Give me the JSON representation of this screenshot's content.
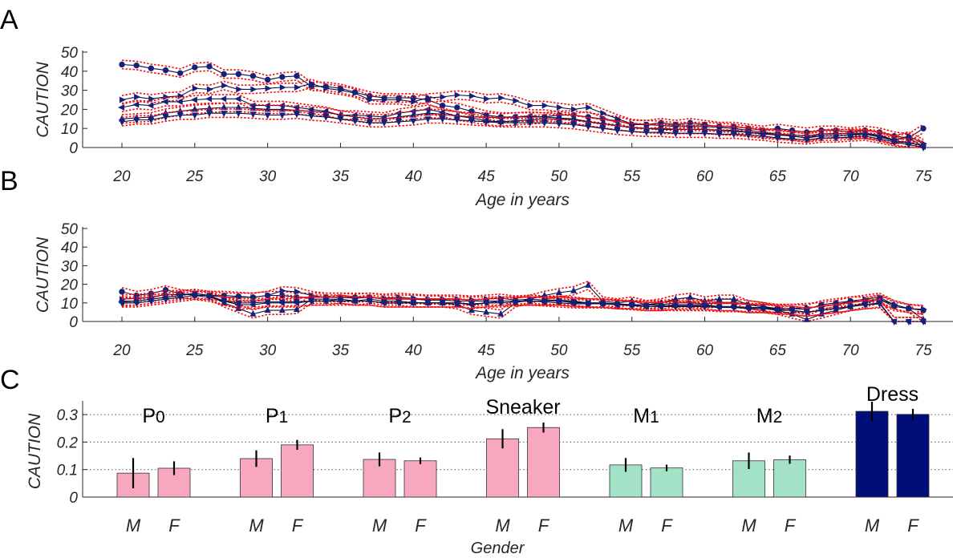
{
  "panel_labels": [
    "A",
    "B",
    "C"
  ],
  "colors": {
    "line": "#0d1045",
    "marker": "#16227a",
    "band": "#ee1111",
    "pink": "#f7a8bf",
    "mint": "#a3e2c7",
    "navy": "#000e7a",
    "axis": "#262626"
  },
  "chart_data": [
    {
      "panel": "A",
      "type": "line",
      "xlabel": "Age in years",
      "ylabel": "CAUTION",
      "xlim": [
        20,
        75
      ],
      "ylim": [
        0,
        50
      ],
      "xticks": [
        20,
        25,
        30,
        35,
        40,
        45,
        50,
        55,
        60,
        65,
        70,
        75
      ],
      "yticks": [
        0,
        10,
        20,
        30,
        40,
        50
      ],
      "band_width": 2.2,
      "x": [
        20,
        21,
        22,
        23,
        24,
        25,
        26,
        27,
        28,
        29,
        30,
        31,
        32,
        33,
        34,
        35,
        36,
        37,
        38,
        39,
        40,
        41,
        42,
        43,
        44,
        45,
        46,
        47,
        48,
        49,
        50,
        51,
        52,
        53,
        54,
        55,
        56,
        57,
        58,
        59,
        60,
        61,
        62,
        63,
        64,
        65,
        66,
        67,
        68,
        69,
        70,
        71,
        72,
        73,
        74,
        75
      ],
      "series": [
        {
          "marker": "circle",
          "values": [
            43.5,
            43,
            41.5,
            40.5,
            39,
            42,
            42.5,
            38.5,
            38.5,
            37.5,
            35.5,
            37,
            37.5,
            32,
            32,
            31,
            29,
            27,
            26,
            26,
            26,
            25,
            22,
            21,
            19,
            17,
            16,
            16,
            16,
            16,
            17,
            17,
            16,
            15,
            14,
            12,
            12,
            13,
            12,
            13,
            12,
            11,
            11,
            10,
            9,
            10,
            9,
            8,
            9,
            9,
            8,
            9,
            8,
            6,
            5,
            10
          ]
        },
        {
          "marker": "triangle-right",
          "values": [
            25,
            26.5,
            25.5,
            26.5,
            27,
            31,
            30.5,
            32.5,
            30.5,
            30.5,
            31,
            31.5,
            31.5,
            33.5,
            31,
            30,
            28.5,
            25,
            25,
            25,
            24,
            26,
            26.5,
            27.5,
            27,
            25.5,
            26,
            24.5,
            22,
            22,
            21,
            20,
            21,
            18,
            15,
            12.5,
            12,
            11.5,
            11,
            11,
            11,
            10.5,
            10,
            9,
            8,
            7,
            6.5,
            6,
            7,
            7.5,
            7,
            7,
            6,
            4,
            6,
            2
          ]
        },
        {
          "marker": "triangle-left",
          "values": [
            21,
            22.5,
            22,
            24,
            24,
            25,
            25.5,
            25.5,
            25.5,
            22,
            22,
            22,
            21,
            20,
            19,
            17,
            17,
            16.5,
            16,
            18,
            19,
            20,
            18.5,
            16.5,
            16,
            16,
            15.5,
            16,
            16.5,
            16,
            15.5,
            15,
            13.5,
            12.5,
            11.5,
            10.5,
            10,
            10,
            9.5,
            9.5,
            9.5,
            9,
            9,
            8,
            7.5,
            7,
            6,
            5,
            7,
            7,
            7.5,
            7.5,
            6.5,
            4,
            5,
            0.5
          ]
        },
        {
          "marker": "triangle-up",
          "values": [
            15,
            15.5,
            16,
            18,
            19,
            20,
            20.5,
            21,
            21,
            20.5,
            20,
            20,
            19.5,
            19,
            18.5,
            17,
            16,
            15,
            15,
            16,
            17,
            18,
            17.5,
            16.5,
            15.5,
            14,
            13.5,
            14,
            14.5,
            15,
            15,
            14.5,
            13.5,
            12.5,
            11.5,
            10.5,
            10,
            9.5,
            9.5,
            9.5,
            9.5,
            9,
            8.5,
            8,
            7,
            6.5,
            6,
            5,
            6,
            6,
            6.5,
            7,
            5.5,
            3.5,
            2.5,
            1
          ]
        },
        {
          "marker": "triangle-down",
          "values": [
            13.5,
            14.5,
            14.5,
            16,
            17,
            17,
            18,
            18,
            18,
            17.5,
            17,
            17,
            17.5,
            16.5,
            16,
            15,
            14,
            13,
            13,
            13.5,
            14,
            15,
            15,
            14.5,
            14,
            13.5,
            13,
            13,
            13,
            13,
            12.5,
            12,
            11,
            10,
            9,
            8.5,
            8,
            8,
            7.5,
            7.5,
            7.5,
            7,
            7,
            6.5,
            6,
            5,
            4.5,
            4,
            5,
            5,
            5.5,
            6,
            4.5,
            3,
            1.5,
            0
          ]
        }
      ]
    },
    {
      "panel": "B",
      "type": "line",
      "xlabel": "Age in years",
      "ylabel": "CAUTION",
      "xlim": [
        20,
        75
      ],
      "ylim": [
        0,
        50
      ],
      "xticks": [
        20,
        25,
        30,
        35,
        40,
        45,
        50,
        55,
        60,
        65,
        70,
        75
      ],
      "yticks": [
        0,
        10,
        20,
        30,
        40,
        50
      ],
      "band_width": 2.2,
      "x": [
        20,
        21,
        22,
        23,
        24,
        25,
        26,
        27,
        28,
        29,
        30,
        31,
        32,
        33,
        34,
        35,
        36,
        37,
        38,
        39,
        40,
        41,
        42,
        43,
        44,
        45,
        46,
        47,
        48,
        49,
        50,
        51,
        52,
        53,
        54,
        55,
        56,
        57,
        58,
        59,
        60,
        61,
        62,
        63,
        64,
        65,
        66,
        67,
        68,
        69,
        70,
        71,
        72,
        73,
        74,
        75
      ],
      "series": [
        {
          "marker": "circle",
          "values": [
            16,
            14,
            15,
            17,
            15,
            14,
            14,
            14,
            13.5,
            13,
            14,
            14,
            13,
            13,
            13,
            13,
            13,
            13,
            12,
            12,
            12,
            11.5,
            11.5,
            11,
            11,
            11,
            11,
            11,
            11,
            10.5,
            10,
            9.5,
            9.5,
            9.5,
            9.5,
            9,
            9,
            8.5,
            8.5,
            8.5,
            8.5,
            8,
            8,
            7.5,
            7.5,
            7,
            7,
            6.5,
            9,
            10,
            11,
            11,
            12,
            8,
            7,
            6
          ]
        },
        {
          "marker": "triangle-right",
          "values": [
            12,
            12.5,
            13,
            14.5,
            14.5,
            15,
            14,
            13,
            13,
            13,
            14,
            16.5,
            16,
            14,
            13,
            13,
            12.5,
            13,
            12.5,
            13,
            12.5,
            12,
            12,
            12,
            11.5,
            12,
            12.5,
            11.5,
            12,
            11.5,
            11.5,
            11,
            10,
            10,
            9.5,
            9,
            9,
            9,
            10,
            10,
            9.5,
            10,
            10,
            9,
            8,
            7,
            7,
            7.5,
            8,
            9,
            11,
            12,
            13,
            9,
            7,
            6.5
          ]
        },
        {
          "marker": "triangle-up",
          "values": [
            11,
            11,
            12,
            13,
            14,
            15,
            14,
            10,
            7,
            4,
            6,
            6,
            6.5,
            12,
            12,
            12,
            11,
            12,
            11,
            11,
            10,
            10,
            10,
            9,
            6,
            5,
            4,
            10,
            12,
            14,
            15.5,
            16.5,
            19.5,
            11,
            10,
            11,
            9,
            10,
            12,
            13,
            11,
            12,
            12,
            9,
            8,
            6,
            4,
            1,
            4,
            6,
            8,
            10,
            12,
            9,
            7,
            1
          ]
        },
        {
          "marker": "triangle-left",
          "values": [
            10.5,
            11,
            12,
            13,
            14,
            15,
            14,
            11,
            9,
            9,
            10,
            10,
            10,
            11,
            11,
            12,
            11,
            11,
            10,
            10,
            10,
            10,
            10,
            10,
            9,
            10,
            11,
            11,
            11,
            11,
            11,
            10,
            10,
            10,
            9,
            9,
            8,
            8,
            9,
            9,
            9,
            8,
            8,
            7,
            7,
            6,
            6,
            5,
            6,
            7,
            8,
            9,
            10,
            0,
            0,
            0
          ]
        },
        {
          "marker": "triangle-down",
          "values": [
            10,
            10,
            11,
            12,
            13,
            14,
            13,
            11,
            10,
            10,
            10.5,
            10.5,
            10.5,
            11,
            11,
            11,
            11,
            11,
            10,
            10,
            10,
            10,
            10,
            10,
            9.5,
            10,
            10,
            10.5,
            11,
            11,
            11,
            10.5,
            10,
            9.5,
            9,
            8.5,
            8,
            8,
            8,
            8,
            8,
            7.5,
            7.5,
            7,
            7,
            6.5,
            6,
            5,
            6,
            7,
            8,
            9,
            9.5,
            0,
            0,
            0
          ]
        }
      ]
    },
    {
      "panel": "C",
      "type": "bar",
      "xlabel": "Gender",
      "ylabel": "CAUTION",
      "ylim": [
        0,
        0.35
      ],
      "yticks": [
        0,
        0.1,
        0.2,
        0.3
      ],
      "ytick_labels": [
        "0",
        "0.1",
        "0.2",
        "0.3"
      ],
      "grid": "horizontal dotted",
      "groups": [
        {
          "title": "P0",
          "title_main": "P",
          "title_sub": "0",
          "color": "pink",
          "labels": [
            "M",
            "F"
          ],
          "values": [
            0.087,
            0.105
          ],
          "errors": [
            0.055,
            0.025
          ]
        },
        {
          "title": "P1",
          "title_main": "P",
          "title_sub": "1",
          "color": "pink",
          "labels": [
            "M",
            "F"
          ],
          "values": [
            0.14,
            0.19
          ],
          "errors": [
            0.03,
            0.018
          ]
        },
        {
          "title": "P2",
          "title_main": "P",
          "title_sub": "2",
          "color": "pink",
          "labels": [
            "M",
            "F"
          ],
          "values": [
            0.137,
            0.132
          ],
          "errors": [
            0.025,
            0.012
          ]
        },
        {
          "title": "Sneaker",
          "title_main": "Sneaker",
          "title_sub": "",
          "color": "pink",
          "labels": [
            "M",
            "F"
          ],
          "values": [
            0.212,
            0.253
          ],
          "errors": [
            0.035,
            0.018
          ]
        },
        {
          "title": "M1",
          "title_main": "M",
          "title_sub": "1",
          "color": "mint",
          "labels": [
            "M",
            "F"
          ],
          "values": [
            0.117,
            0.106
          ],
          "errors": [
            0.025,
            0.012
          ]
        },
        {
          "title": "M2",
          "title_main": "M",
          "title_sub": "2",
          "color": "mint",
          "labels": [
            "M",
            "F"
          ],
          "values": [
            0.132,
            0.136
          ],
          "errors": [
            0.03,
            0.015
          ]
        },
        {
          "title": "Dress",
          "title_main": "Dress",
          "title_sub": "",
          "color": "navy",
          "labels": [
            "M",
            "F"
          ],
          "values": [
            0.312,
            0.301
          ],
          "errors": [
            0.035,
            0.02
          ]
        }
      ]
    }
  ]
}
